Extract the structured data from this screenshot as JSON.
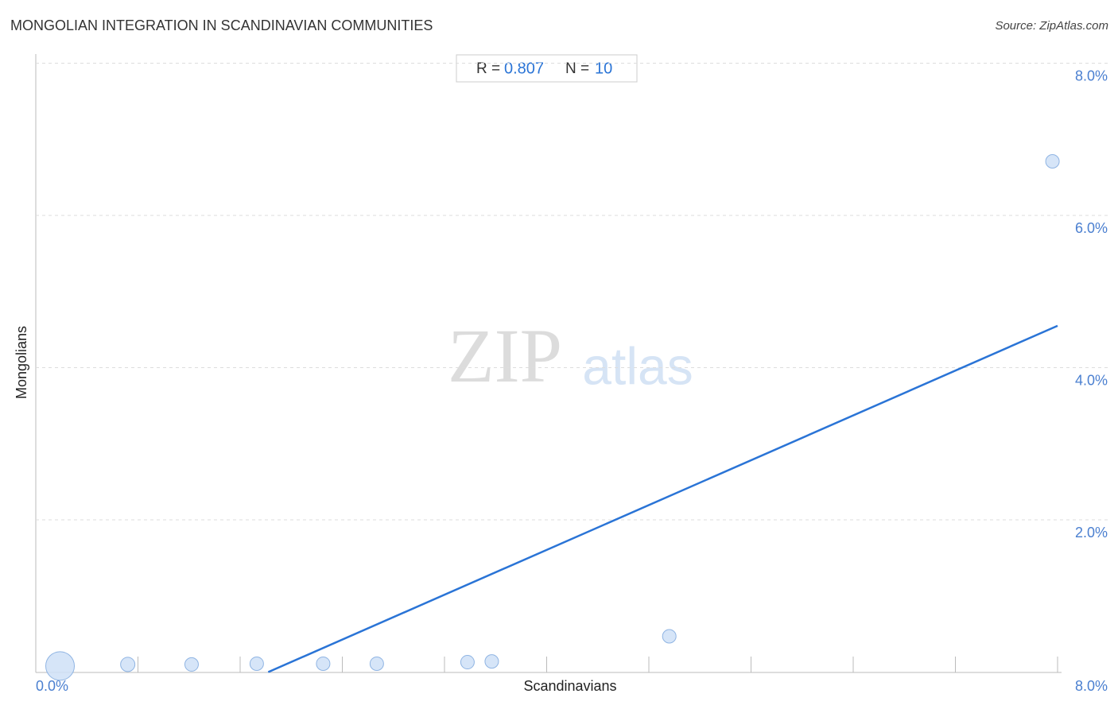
{
  "chart_data": {
    "type": "scatter",
    "title": "MONGOLIAN INTEGRATION IN SCANDINAVIAN COMMUNITIES",
    "source": "Source: ZipAtlas.com",
    "watermark": [
      "ZIP",
      "atlas"
    ],
    "x_label": "Scandinavians",
    "y_label": "Mongolians",
    "stats": {
      "r_label": "R =",
      "r": 0.807,
      "n_label": "N =",
      "n": 10
    },
    "x": [
      0.19,
      0.72,
      1.22,
      1.73,
      2.25,
      2.67,
      3.38,
      3.57,
      4.96,
      7.96
    ],
    "values": [
      0.08,
      0.1,
      0.1,
      0.11,
      0.11,
      0.11,
      0.13,
      0.14,
      0.47,
      6.71
    ],
    "sizes": [
      18,
      9,
      8.5,
      8.5,
      8.5,
      8.5,
      8.5,
      8.5,
      8.5,
      8.5
    ],
    "color": "#cfe0f7",
    "stroke": "#8fb4e3",
    "trend": {
      "x": [
        1.82,
        8.0
      ],
      "values": [
        0,
        4.55
      ],
      "color": "#2a74d6"
    },
    "xlim": [
      0,
      8
    ],
    "ylim": [
      0,
      8
    ],
    "xticks": [
      {
        "value": 0,
        "label": "0.0%"
      },
      {
        "value": 8,
        "label": "8.0%"
      }
    ],
    "xminorticks": [
      0.8,
      1.6,
      2.4,
      3.2,
      4.0,
      4.8,
      5.6,
      6.4,
      7.2,
      8.0
    ],
    "yticks": [
      {
        "value": 2,
        "label": "2.0%"
      },
      {
        "value": 4,
        "label": "4.0%"
      },
      {
        "value": 6,
        "label": "6.0%"
      },
      {
        "value": 8,
        "label": "8.0%"
      }
    ],
    "grid": true
  }
}
